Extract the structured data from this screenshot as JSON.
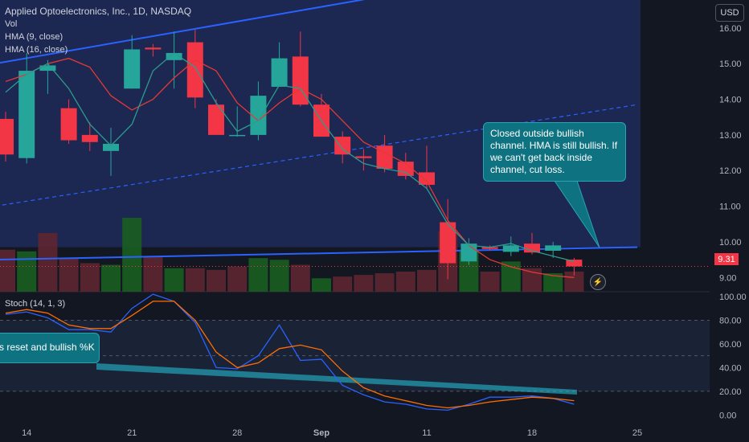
{
  "header": {
    "title": "Applied Optoelectronics, Inc., 1D, NASDAQ",
    "vol_label": "Vol",
    "hma9_label": "HMA (9, close)",
    "hma16_label": "HMA (16, close)",
    "stoch_label": "Stoch (14, 1, 3)",
    "currency": "USD"
  },
  "last_price": "9.31",
  "alert_icon": "lightning-bolt",
  "annotations": {
    "main_callout": "Closed outside bullish channel. HMA is still bullish. If we can't get back inside channel, cut loss.",
    "stoch_callout": "cs reset and bullish %K"
  },
  "colors": {
    "background": "#131722",
    "up": "#26a69a",
    "down": "#f23645",
    "vol_up": "#1b5e20",
    "vol_down": "#5e2630",
    "hma9": "#2a9d8f",
    "hma16": "#e53935",
    "channel": "#2962ff",
    "stoch_k": "#2962ff",
    "stoch_d": "#ff6d00",
    "highlight": "#1e2a5a",
    "callout": "#0e7281"
  },
  "chart_data": [
    {
      "type": "candlestick",
      "title": "Applied Optoelectronics, Inc., 1D, NASDAQ",
      "ylim": [
        8.6,
        16.2
      ],
      "y_ticks": [
        "16.00",
        "15.00",
        "14.00",
        "13.00",
        "12.00",
        "11.00",
        "10.00",
        "9.00"
      ],
      "x_ticks": [
        "14",
        "21",
        "28",
        "Sep",
        "11",
        "18",
        "25"
      ],
      "x_tick_index": [
        1,
        6,
        11,
        15,
        20,
        25,
        30
      ],
      "candles": [
        {
          "o": 13.45,
          "h": 13.65,
          "l": 12.25,
          "c": 12.45
        },
        {
          "o": 12.35,
          "h": 15.3,
          "l": 12.2,
          "c": 14.8
        },
        {
          "o": 14.8,
          "h": 15.1,
          "l": 14.15,
          "c": 14.95
        },
        {
          "o": 13.75,
          "h": 14.0,
          "l": 12.75,
          "c": 12.85
        },
        {
          "o": 13.0,
          "h": 13.35,
          "l": 12.55,
          "c": 12.8
        },
        {
          "o": 12.55,
          "h": 13.2,
          "l": 11.85,
          "c": 12.75
        },
        {
          "o": 14.3,
          "h": 15.8,
          "l": 14.3,
          "c": 15.4
        },
        {
          "o": 15.45,
          "h": 15.55,
          "l": 15.2,
          "c": 15.4
        },
        {
          "o": 15.1,
          "h": 15.9,
          "l": 14.3,
          "c": 15.3
        },
        {
          "o": 15.6,
          "h": 15.95,
          "l": 13.75,
          "c": 14.05
        },
        {
          "o": 13.85,
          "h": 14.0,
          "l": 13.0,
          "c": 13.0
        },
        {
          "o": 13.0,
          "h": 13.8,
          "l": 12.95,
          "c": 13.0
        },
        {
          "o": 13.0,
          "h": 14.5,
          "l": 12.85,
          "c": 14.1
        },
        {
          "o": 14.35,
          "h": 15.6,
          "l": 14.35,
          "c": 15.15
        },
        {
          "o": 15.2,
          "h": 15.9,
          "l": 13.8,
          "c": 13.85
        },
        {
          "o": 13.85,
          "h": 14.15,
          "l": 13.0,
          "c": 12.95
        },
        {
          "o": 12.95,
          "h": 13.1,
          "l": 12.2,
          "c": 12.45
        },
        {
          "o": 12.4,
          "h": 12.6,
          "l": 12.0,
          "c": 12.35
        },
        {
          "o": 12.7,
          "h": 13.0,
          "l": 11.95,
          "c": 12.05
        },
        {
          "o": 12.25,
          "h": 12.5,
          "l": 11.75,
          "c": 11.85
        },
        {
          "o": 11.95,
          "h": 12.7,
          "l": 11.5,
          "c": 11.6
        },
        {
          "o": 10.55,
          "h": 11.2,
          "l": 8.95,
          "c": 9.4
        },
        {
          "o": 9.45,
          "h": 10.1,
          "l": 9.35,
          "c": 9.95
        },
        {
          "o": 9.85,
          "h": 9.9,
          "l": 9.75,
          "c": 9.8
        },
        {
          "o": 9.72,
          "h": 10.15,
          "l": 9.6,
          "c": 9.9
        },
        {
          "o": 9.95,
          "h": 10.25,
          "l": 9.65,
          "c": 9.7
        },
        {
          "o": 9.75,
          "h": 10.0,
          "l": 9.55,
          "c": 9.9
        },
        {
          "o": 9.5,
          "h": 9.55,
          "l": 9.05,
          "c": 9.31
        }
      ],
      "volume": [
        {
          "v": 1.25,
          "up": false
        },
        {
          "v": 1.2,
          "up": true
        },
        {
          "v": 1.75,
          "up": false
        },
        {
          "v": 1.0,
          "up": false
        },
        {
          "v": 0.85,
          "up": false
        },
        {
          "v": 0.8,
          "up": true
        },
        {
          "v": 2.2,
          "up": true
        },
        {
          "v": 1.05,
          "up": false
        },
        {
          "v": 0.7,
          "up": true
        },
        {
          "v": 0.7,
          "up": false
        },
        {
          "v": 0.65,
          "up": false
        },
        {
          "v": 0.75,
          "up": false
        },
        {
          "v": 1.0,
          "up": true
        },
        {
          "v": 0.95,
          "up": true
        },
        {
          "v": 0.8,
          "up": false
        },
        {
          "v": 0.4,
          "up": true
        },
        {
          "v": 0.45,
          "up": false
        },
        {
          "v": 0.5,
          "up": false
        },
        {
          "v": 0.55,
          "up": false
        },
        {
          "v": 0.6,
          "up": false
        },
        {
          "v": 0.65,
          "up": false
        },
        {
          "v": 1.8,
          "up": false
        },
        {
          "v": 1.2,
          "up": true
        },
        {
          "v": 0.6,
          "up": false
        },
        {
          "v": 0.9,
          "up": true
        },
        {
          "v": 0.7,
          "up": false
        },
        {
          "v": 0.55,
          "up": true
        },
        {
          "v": 0.6,
          "up": false
        }
      ],
      "hma9": [
        14.2,
        14.7,
        15.0,
        14.3,
        13.3,
        12.7,
        13.3,
        14.8,
        15.3,
        14.9,
        13.9,
        13.1,
        13.4,
        14.4,
        14.3,
        13.4,
        12.6,
        12.2,
        12.05,
        11.95,
        11.5,
        10.5,
        9.9,
        9.85,
        9.95,
        9.75,
        9.6,
        9.45
      ],
      "hma16": [
        14.5,
        14.7,
        15.0,
        15.15,
        14.9,
        14.1,
        13.7,
        14.0,
        14.6,
        15.1,
        14.8,
        13.9,
        13.4,
        13.9,
        14.3,
        14.0,
        13.4,
        12.8,
        12.5,
        12.2,
        11.7,
        10.6,
        9.9,
        9.5,
        9.3,
        9.15,
        9.05,
        9.0
      ],
      "channel": {
        "upper": [
          [
            -0.5,
            15.0
          ],
          [
            17.0,
            16.8
          ]
        ],
        "lower": [
          [
            -0.5,
            9.5
          ],
          [
            30.0,
            9.85
          ]
        ],
        "mid": [
          [
            -0.5,
            11.0
          ],
          [
            30.0,
            13.85
          ]
        ]
      },
      "last_price_line": 9.31
    },
    {
      "type": "line",
      "title": "Stoch (14, 1, 3)",
      "ylim": [
        -2,
        101
      ],
      "y_ticks": [
        "100.00",
        "80.00",
        "60.00",
        "40.00",
        "20.00",
        "0.00"
      ],
      "bands": [
        80,
        50,
        20
      ],
      "series": [
        {
          "name": "%K",
          "values": [
            85,
            87,
            82,
            72,
            72,
            70,
            90,
            102,
            96,
            78,
            40,
            39,
            50,
            76,
            46,
            47,
            25,
            17,
            11,
            9,
            5,
            4,
            9,
            15,
            15,
            16,
            14,
            9
          ]
        },
        {
          "name": "%D",
          "values": [
            86,
            89,
            86,
            76,
            73,
            73,
            84,
            96,
            96,
            80,
            53,
            40,
            44,
            56,
            59,
            55,
            37,
            23,
            16,
            12,
            8,
            6,
            8,
            11,
            13,
            15,
            14,
            12
          ]
        }
      ]
    }
  ]
}
